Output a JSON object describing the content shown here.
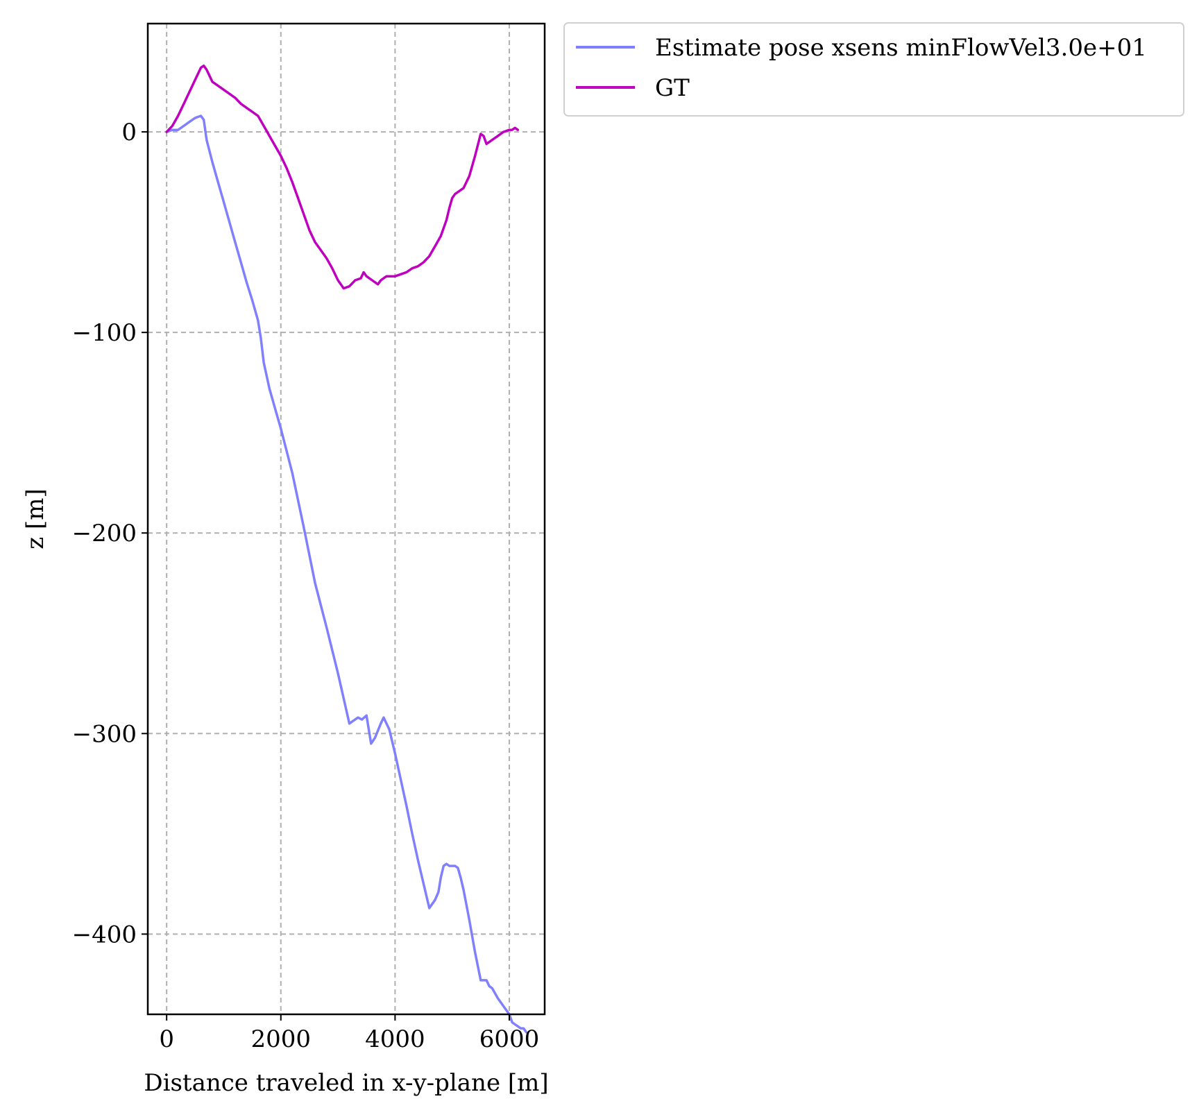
{
  "chart_data": {
    "type": "line",
    "title": "",
    "xlabel": "Distance traveled in x-y-plane [m]",
    "ylabel": "z [m]",
    "xlim": [
      -330,
      6620
    ],
    "ylim": [
      -440,
      54
    ],
    "xticks": [
      0,
      2000,
      4000,
      6000
    ],
    "xtick_labels": [
      "0",
      "2000",
      "4000",
      "6000"
    ],
    "yticks": [
      0,
      -100,
      -200,
      -300,
      -400
    ],
    "ytick_labels": [
      "0",
      "−100",
      "−200",
      "−300",
      "−400"
    ],
    "grid": true,
    "legend_placement": "outside-upper-right",
    "series": [
      {
        "name": "Estimate pose xsens minFlowVel3.0e+01",
        "color": "#8080ff",
        "x": [
          0,
          100,
          200,
          300,
          400,
          500,
          600,
          650,
          700,
          800,
          900,
          1000,
          1100,
          1200,
          1300,
          1400,
          1500,
          1600,
          1650,
          1700,
          1800,
          1900,
          2000,
          2200,
          2400,
          2600,
          2800,
          3000,
          3200,
          3350,
          3420,
          3500,
          3580,
          3650,
          3750,
          3800,
          3850,
          3900,
          4000,
          4100,
          4200,
          4300,
          4400,
          4500,
          4600,
          4700,
          4760,
          4800,
          4850,
          4900,
          4950,
          5000,
          5050,
          5100,
          5150,
          5200,
          5300,
          5400,
          5500,
          5550,
          5600,
          5650,
          5700,
          5800,
          5900,
          6000,
          6050,
          6100,
          6150,
          6200,
          6250,
          6300
        ],
        "y": [
          0,
          1,
          1,
          3,
          5,
          7,
          8,
          6,
          -4,
          -15,
          -25,
          -35,
          -45,
          -55,
          -65,
          -75,
          -84,
          -94,
          -103,
          -115,
          -128,
          -138,
          -148,
          -170,
          -197,
          -225,
          -247,
          -270,
          -295,
          -292,
          -293,
          -291,
          -305,
          -302,
          -295,
          -292,
          -295,
          -298,
          -310,
          -323,
          -336,
          -350,
          -363,
          -375,
          -387,
          -383,
          -379,
          -372,
          -366,
          -365,
          -366,
          -366,
          -366,
          -367,
          -372,
          -378,
          -393,
          -409,
          -423,
          -423,
          -423,
          -426,
          -427,
          -432,
          -436,
          -440,
          -444,
          -445,
          -446,
          -447,
          -447,
          -449
        ]
      },
      {
        "name": "GT",
        "color": "#bf00bf",
        "x": [
          0,
          100,
          200,
          300,
          400,
          500,
          600,
          650,
          700,
          800,
          900,
          1000,
          1100,
          1200,
          1300,
          1400,
          1500,
          1600,
          1700,
          1800,
          1900,
          2000,
          2100,
          2200,
          2300,
          2400,
          2500,
          2600,
          2700,
          2800,
          2900,
          3000,
          3100,
          3200,
          3300,
          3400,
          3450,
          3500,
          3600,
          3700,
          3750,
          3800,
          3850,
          3900,
          3950,
          4000,
          4100,
          4200,
          4300,
          4400,
          4500,
          4600,
          4700,
          4800,
          4900,
          4950,
          5000,
          5050,
          5100,
          5200,
          5300,
          5400,
          5500,
          5550,
          5600,
          5650,
          5700,
          5800,
          5900,
          6000,
          6050,
          6100,
          6150
        ],
        "y": [
          0,
          3,
          8,
          14,
          20,
          26,
          32,
          33,
          31,
          25,
          23,
          21,
          19,
          17,
          14,
          12,
          10,
          8,
          3,
          -2,
          -7,
          -12,
          -18,
          -25,
          -33,
          -41,
          -49,
          -55,
          -59,
          -63,
          -68,
          -74,
          -78,
          -77,
          -74,
          -73,
          -70,
          -72,
          -74,
          -76,
          -74,
          -73,
          -72,
          -72,
          -72,
          -72,
          -71,
          -70,
          -68,
          -67,
          -65,
          -62,
          -57,
          -52,
          -44,
          -38,
          -33,
          -31,
          -30,
          -28,
          -22,
          -12,
          -1,
          -2,
          -6,
          -5,
          -4,
          -2,
          0,
          1,
          1,
          2,
          1
        ]
      }
    ]
  }
}
